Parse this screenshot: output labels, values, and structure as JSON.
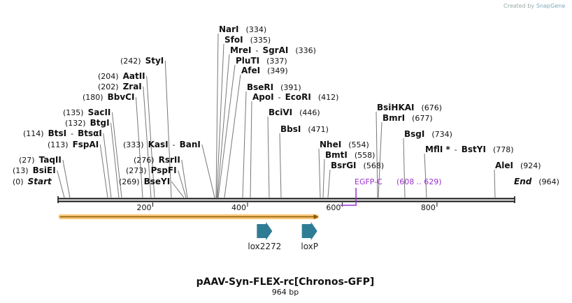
{
  "credit": {
    "created_by": "Created by",
    "brand": "SnapGene"
  },
  "map": {
    "name": "pAAV-Syn-FLEX-rc[Chronos-GFP]",
    "length_label": "964 bp",
    "total_bp": 964,
    "ticks": [
      {
        "bp": 200,
        "label": "200"
      },
      {
        "bp": 400,
        "label": "400"
      },
      {
        "bp": 600,
        "label": "600"
      },
      {
        "bp": 800,
        "label": "800"
      }
    ]
  },
  "sites": [
    {
      "id": "start",
      "parts": [
        {
          "t": "(0)",
          "k": "pos"
        },
        {
          "t": "Start",
          "k": "ital"
        }
      ],
      "bp": 0
    },
    {
      "id": "bsiei",
      "parts": [
        {
          "t": "(13)",
          "k": "pos"
        },
        {
          "t": "BsiEI",
          "k": "name"
        }
      ],
      "bp": 13
    },
    {
      "id": "taqii",
      "parts": [
        {
          "t": "(27)",
          "k": "pos"
        },
        {
          "t": "TaqII",
          "k": "name"
        }
      ],
      "bp": 27
    },
    {
      "id": "fspai",
      "parts": [
        {
          "t": "(113)",
          "k": "pos"
        },
        {
          "t": "FspAI",
          "k": "name"
        }
      ],
      "bp": 113
    },
    {
      "id": "btsi",
      "parts": [
        {
          "t": "(114)",
          "k": "pos"
        },
        {
          "t": "BtsI",
          "k": "name"
        },
        {
          "t": "-",
          "k": "sep"
        },
        {
          "t": "BtsαI",
          "k": "name"
        }
      ],
      "bp": 114
    },
    {
      "id": "btgi",
      "parts": [
        {
          "t": "(132)",
          "k": "pos"
        },
        {
          "t": "BtgI",
          "k": "name"
        }
      ],
      "bp": 132
    },
    {
      "id": "sacii",
      "parts": [
        {
          "t": "(135)",
          "k": "pos"
        },
        {
          "t": "SacII",
          "k": "name"
        }
      ],
      "bp": 135
    },
    {
      "id": "bbvci",
      "parts": [
        {
          "t": "(180)",
          "k": "pos"
        },
        {
          "t": "BbvCI",
          "k": "name"
        }
      ],
      "bp": 180
    },
    {
      "id": "zrai",
      "parts": [
        {
          "t": "(202)",
          "k": "pos"
        },
        {
          "t": "ZraI",
          "k": "name"
        }
      ],
      "bp": 202
    },
    {
      "id": "aatii",
      "parts": [
        {
          "t": "(204)",
          "k": "pos"
        },
        {
          "t": "AatII",
          "k": "name"
        }
      ],
      "bp": 204
    },
    {
      "id": "styi",
      "parts": [
        {
          "t": "(242)",
          "k": "pos"
        },
        {
          "t": "StyI",
          "k": "name"
        }
      ],
      "bp": 242
    },
    {
      "id": "bseyi",
      "parts": [
        {
          "t": "(269)",
          "k": "pos"
        },
        {
          "t": "BseYI",
          "k": "name"
        }
      ],
      "bp": 269
    },
    {
      "id": "pspfi",
      "parts": [
        {
          "t": "(273)",
          "k": "pos"
        },
        {
          "t": "PspFI",
          "k": "name"
        }
      ],
      "bp": 273
    },
    {
      "id": "rsrii",
      "parts": [
        {
          "t": "(276)",
          "k": "pos"
        },
        {
          "t": "RsrII",
          "k": "name"
        }
      ],
      "bp": 276
    },
    {
      "id": "kasi",
      "parts": [
        {
          "t": "(333)",
          "k": "pos"
        },
        {
          "t": "KasI",
          "k": "name"
        },
        {
          "t": "-",
          "k": "sep"
        },
        {
          "t": "BanI",
          "k": "name"
        }
      ],
      "bp": 333
    },
    {
      "id": "nari",
      "parts": [
        {
          "t": "NarI",
          "k": "name"
        },
        {
          "t": "(334)",
          "k": "pos"
        }
      ],
      "bp": 334
    },
    {
      "id": "sfoi",
      "parts": [
        {
          "t": "SfoI",
          "k": "name"
        },
        {
          "t": "(335)",
          "k": "pos"
        }
      ],
      "bp": 335
    },
    {
      "id": "mrei",
      "parts": [
        {
          "t": "MreI",
          "k": "name"
        },
        {
          "t": "-",
          "k": "sep"
        },
        {
          "t": "SgrAI",
          "k": "name"
        },
        {
          "t": "(336)",
          "k": "pos"
        }
      ],
      "bp": 336
    },
    {
      "id": "pluti",
      "parts": [
        {
          "t": "PluTI",
          "k": "name"
        },
        {
          "t": "(337)",
          "k": "pos"
        }
      ],
      "bp": 337
    },
    {
      "id": "afei",
      "parts": [
        {
          "t": "AfeI",
          "k": "name"
        },
        {
          "t": "(349)",
          "k": "pos"
        }
      ],
      "bp": 349
    },
    {
      "id": "bseri",
      "parts": [
        {
          "t": "BseRI",
          "k": "name"
        },
        {
          "t": "(391)",
          "k": "pos"
        }
      ],
      "bp": 391
    },
    {
      "id": "apoi",
      "parts": [
        {
          "t": "ApoI",
          "k": "name"
        },
        {
          "t": "-",
          "k": "sep"
        },
        {
          "t": "EcoRI",
          "k": "name"
        },
        {
          "t": "(412)",
          "k": "pos"
        }
      ],
      "bp": 412
    },
    {
      "id": "bcivi",
      "parts": [
        {
          "t": "BciVI",
          "k": "name"
        },
        {
          "t": "(446)",
          "k": "pos"
        }
      ],
      "bp": 446
    },
    {
      "id": "bbsi",
      "parts": [
        {
          "t": "BbsI",
          "k": "name"
        },
        {
          "t": "(471)",
          "k": "pos"
        }
      ],
      "bp": 471
    },
    {
      "id": "nhei",
      "parts": [
        {
          "t": "NheI",
          "k": "name"
        },
        {
          "t": "(554)",
          "k": "pos"
        }
      ],
      "bp": 554
    },
    {
      "id": "bmti",
      "parts": [
        {
          "t": "BmtI",
          "k": "name"
        },
        {
          "t": "(558)",
          "k": "pos"
        }
      ],
      "bp": 558
    },
    {
      "id": "bsrgi",
      "parts": [
        {
          "t": "BsrGI",
          "k": "name"
        },
        {
          "t": "(568)",
          "k": "pos"
        }
      ],
      "bp": 568
    },
    {
      "id": "bsihkai",
      "parts": [
        {
          "t": "BsiHKAI",
          "k": "name"
        },
        {
          "t": "(676)",
          "k": "pos"
        }
      ],
      "bp": 676
    },
    {
      "id": "bmri",
      "parts": [
        {
          "t": "BmrI",
          "k": "name"
        },
        {
          "t": "(677)",
          "k": "pos"
        }
      ],
      "bp": 677
    },
    {
      "id": "bsgi",
      "parts": [
        {
          "t": "BsgI",
          "k": "name"
        },
        {
          "t": "(734)",
          "k": "pos"
        }
      ],
      "bp": 734
    },
    {
      "id": "mfli",
      "parts": [
        {
          "t": "MflI *",
          "k": "name"
        },
        {
          "t": "-",
          "k": "sep"
        },
        {
          "t": "BstYI",
          "k": "name"
        },
        {
          "t": "(778)",
          "k": "pos"
        }
      ],
      "bp": 778
    },
    {
      "id": "alei",
      "parts": [
        {
          "t": "AleI",
          "k": "name"
        },
        {
          "t": "(924)",
          "k": "pos"
        }
      ],
      "bp": 924
    },
    {
      "id": "end",
      "parts": [
        {
          "t": "End",
          "k": "ital"
        },
        {
          "t": "(964)",
          "k": "pos"
        }
      ],
      "bp": 964
    }
  ],
  "primer": {
    "name": "EGFP-C",
    "range": "(608 .. 629)",
    "start_bp": 608,
    "end_bp": 629,
    "color": "#9b30d0"
  },
  "features": [
    {
      "id": "lox2272",
      "label": "lox2272",
      "bp": 436
    },
    {
      "id": "loxp",
      "label": "loxP",
      "bp": 531
    }
  ],
  "colors": {
    "backbone": "#111111",
    "leader": "#777777",
    "feature_arrow": "#2f7c95",
    "orf_fill": "#f7c77a",
    "orf_line": "#8a5a00"
  }
}
